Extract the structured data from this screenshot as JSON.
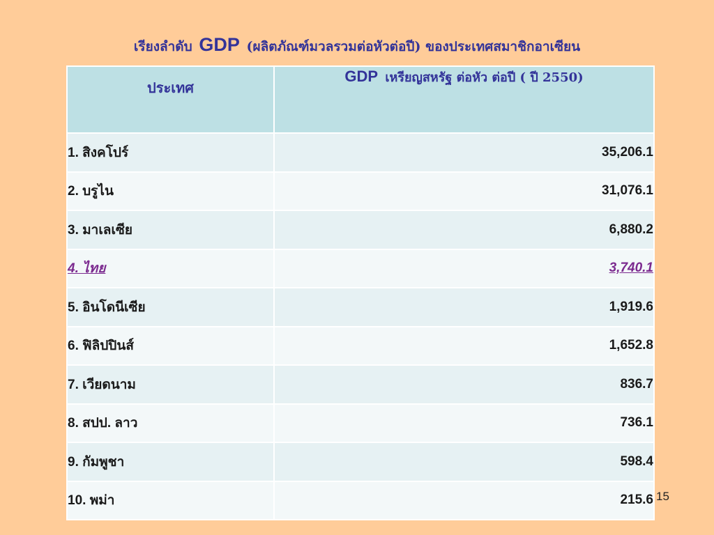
{
  "title": {
    "prefix": "เรียงลำดับ",
    "gdp": "GDP",
    "suffix": "(ผลิตภัณฑ์มวลรวมต่อหัวต่อปี) ของประเทศสมาชิกอาเซียน"
  },
  "table": {
    "headers": {
      "country": "ประเทศ",
      "gdp_prefix": "GDP",
      "gdp_label": "เหรียญสหรัฐ ต่อหัว ต่อปี ( ปี 2550)"
    },
    "rows": [
      {
        "country": "1. สิงคโปร์",
        "value": "35,206.1"
      },
      {
        "country": "2. บรูไน",
        "value": "31,076.1"
      },
      {
        "country": "3. มาเลเซีย",
        "value": "6,880.2"
      },
      {
        "country": "4. ไทย",
        "value": "3,740.1"
      },
      {
        "country": "5. อินโดนีเซีย",
        "value": "1,919.6"
      },
      {
        "country": "6. ฟิลิปปินส์",
        "value": "1,652.8"
      },
      {
        "country": "7. เวียดนาม",
        "value": "836.7"
      },
      {
        "country": "8. สปป. ลาว",
        "value": "736.1"
      },
      {
        "country": "9. กัมพูชา",
        "value": "598.4"
      },
      {
        "country": "10. พม่า",
        "value": "215.6"
      }
    ],
    "highlight_row": 3
  },
  "page_number": "15",
  "colors": {
    "background": "#FFCC99",
    "title": "#333399",
    "header_bg": "#BDE0E4",
    "highlight_text": "#7B2A8F"
  }
}
